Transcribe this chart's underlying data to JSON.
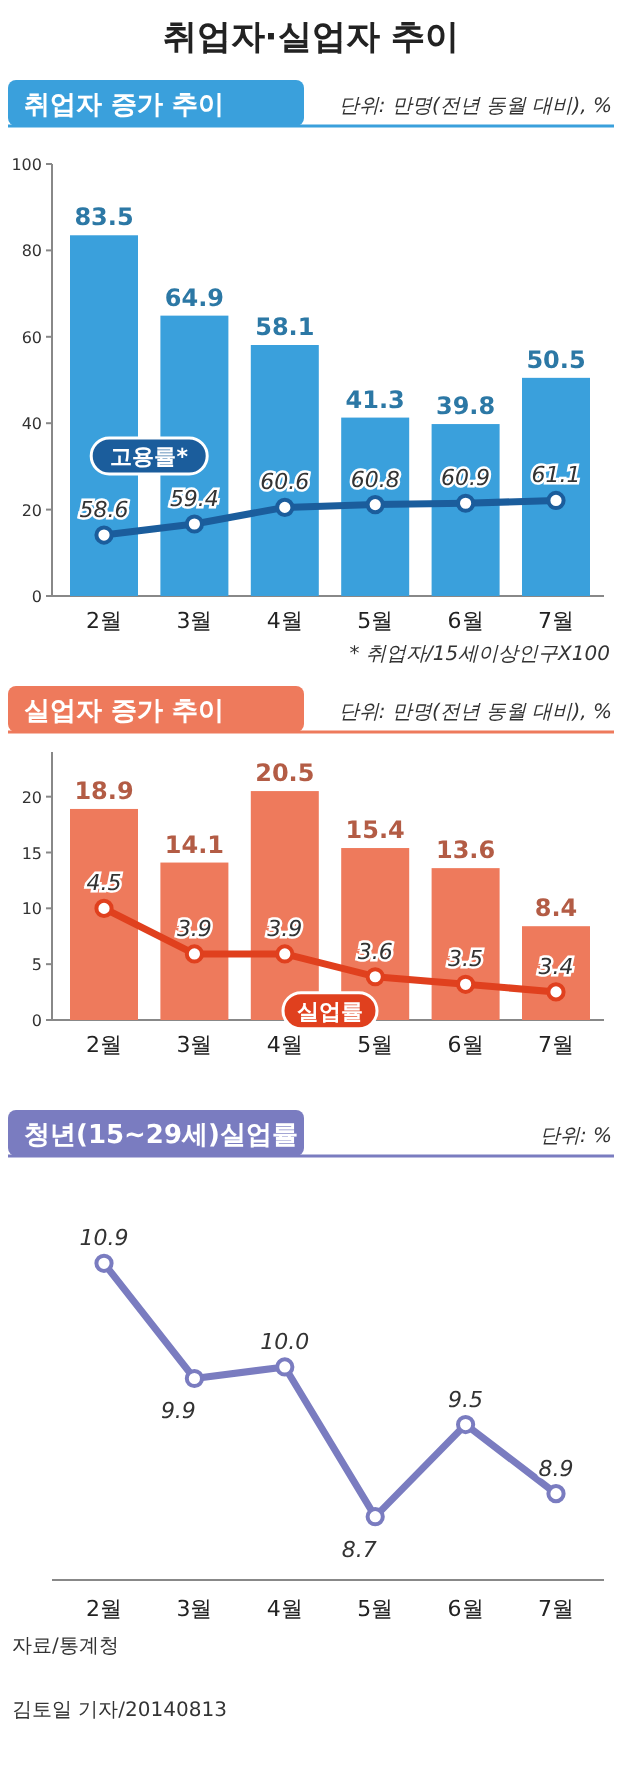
{
  "chart_data": [
    {
      "type": "other",
      "title": "취업자·실업자 추이"
    },
    {
      "type": "bar",
      "title": "취업자 증가 추이",
      "subtitle": "단위: 만명(전년 동월 대비), %",
      "categories": [
        "2월",
        "3월",
        "4월",
        "5월",
        "6월",
        "7월"
      ],
      "ylim": [
        0,
        100
      ],
      "yticks": [
        0,
        20,
        40,
        60,
        80,
        100
      ],
      "y2lim": [
        54.2,
        85.4
      ],
      "data_labels": true,
      "marker": "circle",
      "annotations": [
        "* 취업자/15세이상인구X100"
      ],
      "series": [
        {
          "type": "bar",
          "color": "#3aa0dc",
          "values": [
            83.5,
            64.9,
            58.1,
            41.3,
            39.8,
            50.5
          ]
        },
        {
          "type": "line",
          "name": "고용률*",
          "axis": "y2",
          "color": "#1b5d9c",
          "values": [
            58.6,
            59.4,
            60.6,
            60.8,
            60.9,
            61.1
          ]
        }
      ]
    },
    {
      "type": "bar",
      "title": "실업자 증가 추이",
      "subtitle": "단위: 만명(전년 동월 대비), %",
      "categories": [
        "2월",
        "3월",
        "4월",
        "5월",
        "6월",
        "7월"
      ],
      "ylim": [
        0,
        24
      ],
      "yticks": [
        0,
        5,
        10,
        15,
        20
      ],
      "y2lim": [
        3.03,
        6.56
      ],
      "data_labels": true,
      "marker": "circle",
      "series": [
        {
          "type": "bar",
          "color": "#ee7a5c",
          "values": [
            18.9,
            14.1,
            20.5,
            15.4,
            13.6,
            8.4
          ]
        },
        {
          "type": "line",
          "name": "실업률",
          "axis": "y2",
          "color": "#e0401e",
          "values": [
            4.5,
            3.9,
            3.9,
            3.6,
            3.5,
            3.4
          ]
        }
      ]
    },
    {
      "type": "line",
      "title": "청년(15~29세)실업률",
      "subtitle": "단위: %",
      "categories": [
        "2월",
        "3월",
        "4월",
        "5월",
        "6월",
        "7월"
      ],
      "values": [
        10.9,
        9.9,
        10.0,
        8.7,
        9.5,
        8.9
      ],
      "value_labels": [
        "10.9",
        "9.9",
        "10.0",
        "8.7",
        "9.5",
        "8.9"
      ],
      "color": "#7a7cc0",
      "tick_labels": "x",
      "marker": "circle",
      "annotations": [
        "자료/통계청",
        "김토일 기자/20140813"
      ]
    }
  ]
}
